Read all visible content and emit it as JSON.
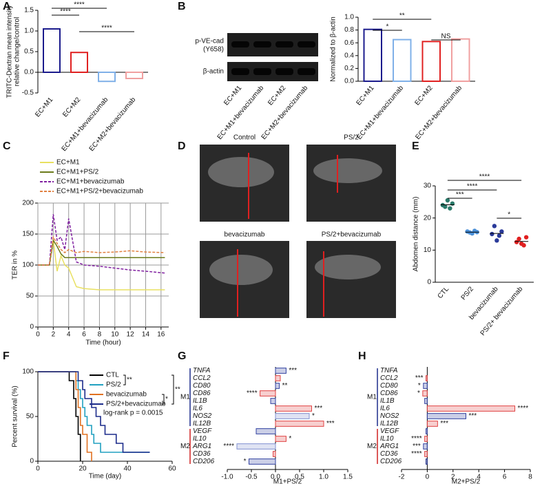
{
  "panel_labels": [
    "A",
    "B",
    "C",
    "D",
    "E",
    "F",
    "G",
    "H"
  ],
  "blot": {
    "row_labels": [
      [
        "p-VE-cad",
        "(Y658)"
      ],
      [
        "β-actin"
      ]
    ],
    "lanes": [
      "EC+M1",
      "EC+M1+bevacizumab",
      "EC+M2",
      "EC+M2+bevacizumab"
    ]
  },
  "ultrasound": {
    "labels": [
      "Control",
      "PS/2",
      "bevacizumab",
      "PS/2+bevacizumab"
    ]
  },
  "chart_data": [
    {
      "type": "bar",
      "ylabel": [
        "TRITC-Dextran mean  intensity",
        "relative change/control"
      ],
      "categories": [
        "EC+M1",
        "EC+M2",
        "EC+M1+bevacizumab",
        "EC+M2+bevacizumab"
      ],
      "values": [
        1.05,
        0.48,
        -0.22,
        -0.15
      ],
      "colors": [
        "#1a1a8c",
        "#e02020",
        "#7fb0e8",
        "#f0a0a0"
      ],
      "ylim": [
        -0.5,
        1.5
      ],
      "yticks": [
        {
          "value": -0.5,
          "label": "-0.5"
        },
        {
          "value": 0,
          "label": "0.0"
        },
        {
          "value": 0.5,
          "label": "0.5"
        },
        {
          "value": 1,
          "label": "1.0"
        },
        {
          "value": 1.5,
          "label": "1.5"
        }
      ],
      "annotations": [
        "****",
        "****",
        "****"
      ]
    },
    {
      "type": "bar",
      "ylabel": "Normalized to β-actin",
      "categories": [
        "EC+M1",
        "EC+M1+bevacizumab",
        "EC+M2",
        "EC+M2+bevacizumab"
      ],
      "values": [
        0.81,
        0.65,
        0.62,
        0.66
      ],
      "colors": [
        "#1a1a8c",
        "#7fb0e8",
        "#e02020",
        "#f0a0a0"
      ],
      "ylim": [
        0,
        1
      ],
      "yticks": [
        {
          "value": 0,
          "label": "0.0"
        },
        {
          "value": 0.2,
          "label": "0.2"
        },
        {
          "value": 0.4,
          "label": "0.4"
        },
        {
          "value": 0.6,
          "label": "0.6"
        },
        {
          "value": 0.8,
          "label": "0.8"
        },
        {
          "value": 1,
          "label": "1.0"
        }
      ],
      "annotations": [
        "*",
        "**",
        "NS"
      ]
    },
    {
      "type": "line",
      "ylabel": "TER in %",
      "xlabel": "Time (hour)",
      "x": [
        0,
        1,
        1.5,
        2,
        2.5,
        3,
        3.5,
        4,
        5,
        6,
        8,
        10,
        12,
        14,
        16.5
      ],
      "series": [
        {
          "name": "EC+M1",
          "color": "#e8e060",
          "dashed": false,
          "values": [
            100,
            100,
            100,
            140,
            90,
            115,
            100,
            95,
            65,
            62,
            60,
            60,
            60,
            60,
            60
          ]
        },
        {
          "name": "EC+M1+PS/2",
          "color": "#6b7a1a",
          "dashed": false,
          "values": [
            100,
            100,
            100,
            140,
            130,
            118,
            112,
            112,
            112,
            112,
            112,
            112,
            112,
            112,
            112
          ]
        },
        {
          "name": "EC+M1+bevacizumab",
          "color": "#8020a0",
          "dashed": true,
          "values": [
            100,
            100,
            100,
            182,
            140,
            145,
            125,
            175,
            105,
            100,
            98,
            95,
            92,
            90,
            87
          ]
        },
        {
          "name": "EC+M1+PS/2+bevacizumab",
          "color": "#e08040",
          "dashed": true,
          "values": [
            100,
            100,
            100,
            145,
            135,
            125,
            120,
            125,
            120,
            122,
            120,
            121,
            123,
            121,
            120
          ]
        }
      ],
      "xlim": [
        0,
        17
      ],
      "xticks": [
        0,
        2,
        4,
        6,
        8,
        10,
        12,
        14,
        16
      ],
      "ylim": [
        0,
        200
      ],
      "yticks": [
        0,
        50,
        100,
        150,
        200
      ],
      "grid": true
    },
    {
      "type": "dot",
      "ylabel": "Abdomen distance (mm)",
      "categories": [
        "CTL",
        "PS/2",
        "bevacizumab",
        "PS/2+ bevacizumab"
      ],
      "values": [
        [
          24,
          23.5,
          25.5,
          23,
          24.5
        ],
        [
          15.8,
          15.5,
          15.2,
          16,
          15.6
        ],
        [
          15,
          17.5,
          13,
          14.5,
          15.8
        ],
        [
          12.5,
          13.5,
          12,
          11.5,
          14
        ]
      ],
      "means": [
        24.1,
        15.6,
        15.2,
        12.7
      ],
      "colors": [
        "#2a7a6a",
        "#4a90d9",
        "#2a3a9a",
        "#e02020"
      ],
      "ylim": [
        0,
        30
      ],
      "yticks": [
        0,
        10,
        20,
        30
      ],
      "annotations": [
        "****",
        "****",
        "***",
        "*"
      ]
    },
    {
      "type": "step",
      "ylabel": "Percent survival (%)",
      "xlabel": "Time (day)",
      "series": [
        {
          "name": "CTL",
          "color": "#000000",
          "x": [
            0,
            14,
            16,
            17,
            18,
            19
          ],
          "values": [
            100,
            90,
            70,
            50,
            30,
            0
          ]
        },
        {
          "name": "PS/2",
          "color": "#20a0c0",
          "x": [
            0,
            17,
            18,
            19,
            20,
            21,
            22,
            24,
            25,
            28,
            30,
            50
          ],
          "values": [
            100,
            90,
            80,
            70,
            60,
            50,
            40,
            30,
            20,
            10,
            10,
            10
          ]
        },
        {
          "name": "bevacizumab",
          "color": "#e07020",
          "x": [
            0,
            17,
            18,
            19,
            20,
            22,
            24
          ],
          "values": [
            100,
            80,
            60,
            40,
            30,
            10,
            0
          ]
        },
        {
          "name": "PS/2+bevacizumab",
          "color": "#1a2a8a",
          "x": [
            0,
            18,
            20,
            21,
            24,
            26,
            28,
            30,
            35,
            38,
            50
          ],
          "values": [
            100,
            90,
            80,
            70,
            60,
            50,
            40,
            30,
            20,
            10,
            10
          ]
        }
      ],
      "xlim": [
        0,
        60
      ],
      "xticks": [
        0,
        20,
        40,
        60
      ],
      "ylim": [
        0,
        100
      ],
      "yticks": [
        0,
        50,
        100
      ],
      "annotations": [
        "**",
        "*",
        "**"
      ],
      "note": "log-rank p = 0.0015"
    },
    {
      "type": "hbar",
      "xlabel": "M1+PS/2",
      "categories": [
        "TNFA",
        "CCL2",
        "CD80",
        "CD86",
        "IL1B",
        "IL6",
        "NOS2",
        "IL12B",
        "VEGF",
        "IL10",
        "ARG1",
        "CD36",
        "CD206"
      ],
      "values": [
        0.22,
        0.1,
        0.08,
        -0.32,
        -0.1,
        0.75,
        0.7,
        1.0,
        -0.4,
        0.22,
        -0.8,
        -0.05,
        -0.55
      ],
      "colors": [
        "#3040a0",
        "#e04040",
        "#3040a0",
        "#e04040",
        "#3040a0",
        "#e04040",
        "#8090d0",
        "#e04040",
        "#3040a0",
        "#e04040",
        "#8090d0",
        "#e04040",
        "#3040a0"
      ],
      "annotations": [
        "***",
        null,
        "**",
        "****",
        null,
        "***",
        "*",
        "***",
        null,
        "*",
        "****",
        null,
        "*"
      ],
      "groups": [
        {
          "name": "M1",
          "size": 8,
          "color": "#1a2a8a"
        },
        {
          "name": "M2",
          "size": 5,
          "color": "#d02020"
        }
      ],
      "xlim": [
        -1,
        1.5
      ],
      "xticks": [
        {
          "value": -1,
          "label": "-1.0"
        },
        {
          "value": -0.5,
          "label": "-0.5"
        },
        {
          "value": 0,
          "label": "0.0"
        },
        {
          "value": 0.5,
          "label": "0.5"
        },
        {
          "value": 1,
          "label": "1.0"
        },
        {
          "value": 1.5,
          "label": "1.5"
        }
      ]
    },
    {
      "type": "hbar",
      "xlabel": "M2+PS/2",
      "categories": [
        "TNFA",
        "CCL2",
        "CD80",
        "CD86",
        "IL1B",
        "IL6",
        "NOS2",
        "IL12B",
        "VEGF",
        "IL10",
        "ARG1",
        "CD36",
        "CD206"
      ],
      "values": [
        0,
        -0.1,
        -0.3,
        -0.35,
        -0.2,
        6.8,
        3.0,
        0.8,
        -0.1,
        -0.2,
        -0.3,
        -0.2,
        -0.1
      ],
      "colors": [
        "#3040a0",
        "#e04040",
        "#3040a0",
        "#e04040",
        "#3040a0",
        "#e04040",
        "#3040a0",
        "#e04040",
        "#3040a0",
        "#e04040",
        "#3040a0",
        "#e04040",
        "#1a2a8a"
      ],
      "annotations": [
        null,
        "***",
        "*",
        "*",
        null,
        "****",
        "***",
        "***",
        null,
        "****",
        "***",
        "****",
        null
      ],
      "groups": [
        {
          "name": "M1",
          "size": 8,
          "color": "#1a2a8a"
        },
        {
          "name": "M2",
          "size": 5,
          "color": "#d02020"
        }
      ],
      "xlim": [
        -2,
        8
      ],
      "xticks": [
        -2,
        0,
        2,
        4,
        6,
        8
      ]
    }
  ]
}
